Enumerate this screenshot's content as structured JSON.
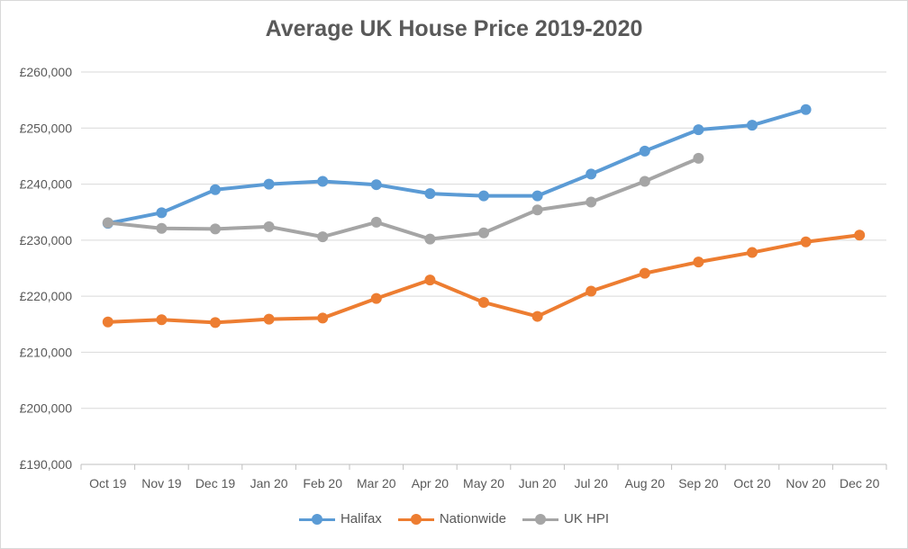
{
  "chart_data": {
    "type": "line",
    "title": "Average UK House Price 2019-2020",
    "xlabel": "",
    "ylabel": "",
    "categories": [
      "Oct 19",
      "Nov 19",
      "Dec 19",
      "Jan 20",
      "Feb 20",
      "Mar 20",
      "Apr 20",
      "May 20",
      "Jun 20",
      "Jul 20",
      "Aug 20",
      "Sep 20",
      "Oct 20",
      "Nov 20",
      "Dec 20"
    ],
    "ylim": [
      190000,
      260000
    ],
    "ytick_step": 10000,
    "yticks": [
      "£190,000",
      "£200,000",
      "£210,000",
      "£220,000",
      "£230,000",
      "£240,000",
      "£250,000",
      "£260,000"
    ],
    "grid": true,
    "legend_position": "bottom",
    "series": [
      {
        "name": "Halifax",
        "color": "#5b9bd5",
        "values": [
          233000,
          234900,
          239000,
          240000,
          240500,
          239900,
          238300,
          237900,
          237900,
          241800,
          245900,
          249700,
          250500,
          253300,
          null
        ]
      },
      {
        "name": "Nationwide",
        "color": "#ed7d31",
        "values": [
          215400,
          215800,
          215300,
          215900,
          216100,
          219600,
          222900,
          218900,
          216400,
          220900,
          224100,
          226100,
          227800,
          229700,
          230900
        ]
      },
      {
        "name": "UK HPI",
        "color": "#a5a5a5",
        "values": [
          233100,
          232100,
          232000,
          232400,
          230600,
          233200,
          230200,
          231300,
          235400,
          236800,
          240500,
          244600,
          null,
          null,
          null
        ]
      }
    ]
  }
}
